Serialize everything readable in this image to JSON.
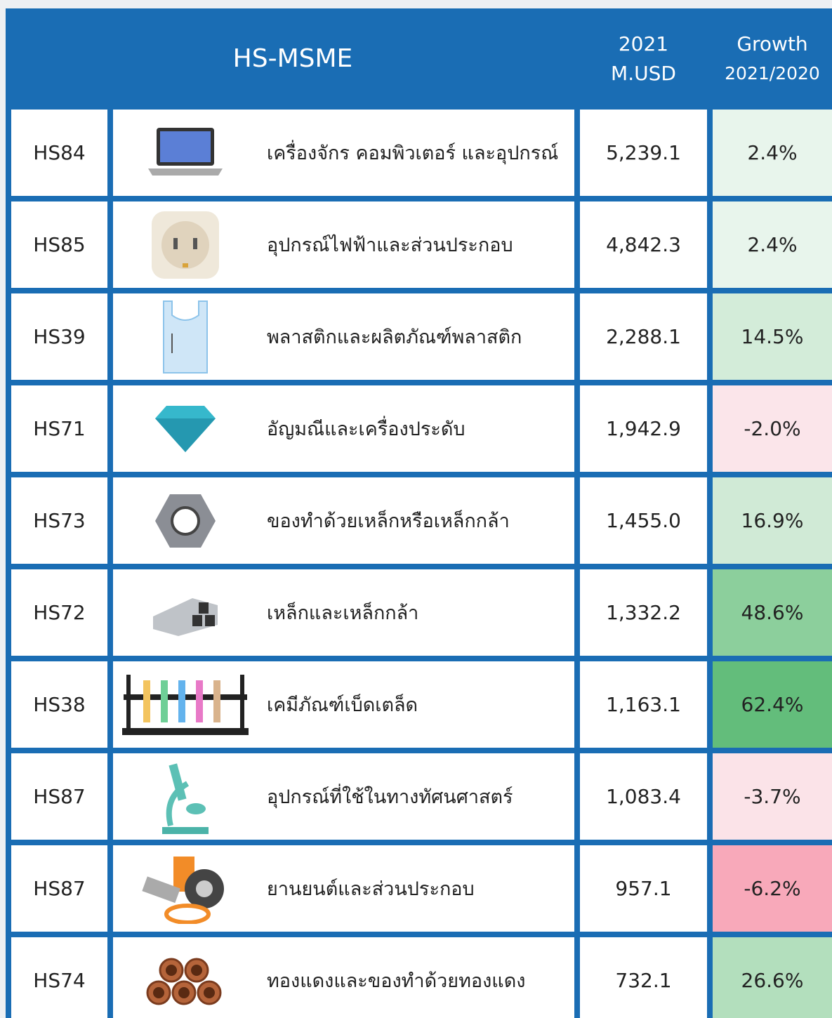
{
  "header": {
    "title": "HS-MSME",
    "value_year": "2021",
    "value_unit": "M.USD",
    "growth_title": "Growth",
    "growth_period": "2021/2020"
  },
  "table": {
    "rows": [
      {
        "code": "HS84",
        "name": "เครื่องจักร คอมพิวเตอร์ และอุปกรณ์",
        "value": "5,239.1",
        "growth": "2.4%",
        "color": "#e8f5ec"
      },
      {
        "code": "HS85",
        "name": "อุปกรณ์ไฟฟ้าและส่วนประกอบ",
        "value": "4,842.3",
        "growth": "2.4%",
        "color": "#e8f5ec"
      },
      {
        "code": "HS39",
        "name": "พลาสติกและผลิตภัณฑ์พลาสติก",
        "value": "2,288.1",
        "growth": "14.5%",
        "color": "#d3ecd9"
      },
      {
        "code": "HS71",
        "name": "อัญมณีและเครื่องประดับ",
        "value": "1,942.9",
        "growth": "-2.0%",
        "color": "#fbe5ea"
      },
      {
        "code": "HS73",
        "name": "ของทำด้วยเหล็กหรือเหล็กกล้า",
        "value": "1,455.0",
        "growth": "16.9%",
        "color": "#d0ead6"
      },
      {
        "code": "HS72",
        "name": "เหล็กและเหล็กกล้า",
        "value": "1,332.2",
        "growth": "48.6%",
        "color": "#8ccf9c"
      },
      {
        "code": "HS38",
        "name": "เคมีภัณฑ์เบ็ดเตล็ด",
        "value": "1,163.1",
        "growth": "62.4%",
        "color": "#63bd7b"
      },
      {
        "code": "HS87",
        "name": "อุปกรณ์ที่ใช้ในทางทัศนศาสตร์",
        "value": "1,083.4",
        "growth": "-3.7%",
        "color": "#fbe3e8"
      },
      {
        "code": "HS87",
        "name": "ยานยนต์และส่วนประกอบ",
        "value": "957.1",
        "growth": "-6.2%",
        "color": "#f8a9ba"
      },
      {
        "code": "HS74",
        "name": "ทองแดงและของทำด้วยทองแดง",
        "value": "732.1",
        "growth": "26.6%",
        "color": "#b3dfbd"
      }
    ]
  }
}
